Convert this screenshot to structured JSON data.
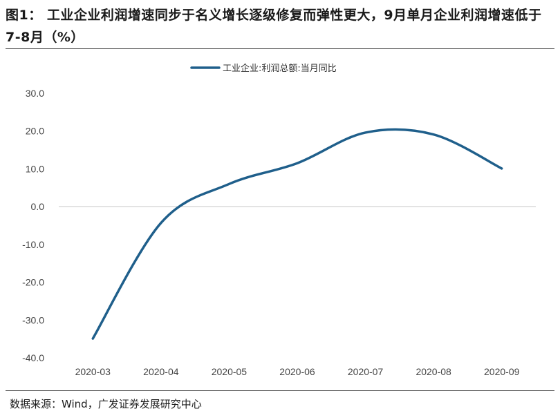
{
  "title": "图1：  工业企业利润增速同步于名义增长逐级修复而弹性更大，9月单月企业利润增速低于7-8月（%）",
  "source": "数据来源：Wind，广发证券发展研究中心",
  "chart_data": {
    "type": "line",
    "title": "图1：  工业企业利润增速同步于名义增长逐级修复而弹性更大，9月单月企业利润增速低于7-8月（%）",
    "categories": [
      "2020-03",
      "2020-04",
      "2020-05",
      "2020-06",
      "2020-07",
      "2020-08",
      "2020-09"
    ],
    "series": [
      {
        "name": "工业企业:利润总额:当月同比",
        "values": [
          -34.9,
          -4.3,
          6.0,
          11.5,
          19.6,
          19.1,
          10.1
        ],
        "color": "#1f5f8b"
      }
    ],
    "ylim": [
      -40,
      30
    ],
    "yticks": [
      30,
      20,
      10,
      0,
      -10,
      -20,
      -30,
      -40
    ],
    "ytick_labels": [
      "30.0",
      "20.0",
      "10.0",
      "0.0",
      "-10.0",
      "-20.0",
      "-30.0",
      "-40.0"
    ],
    "legend_position": "top-center",
    "grid": false
  }
}
